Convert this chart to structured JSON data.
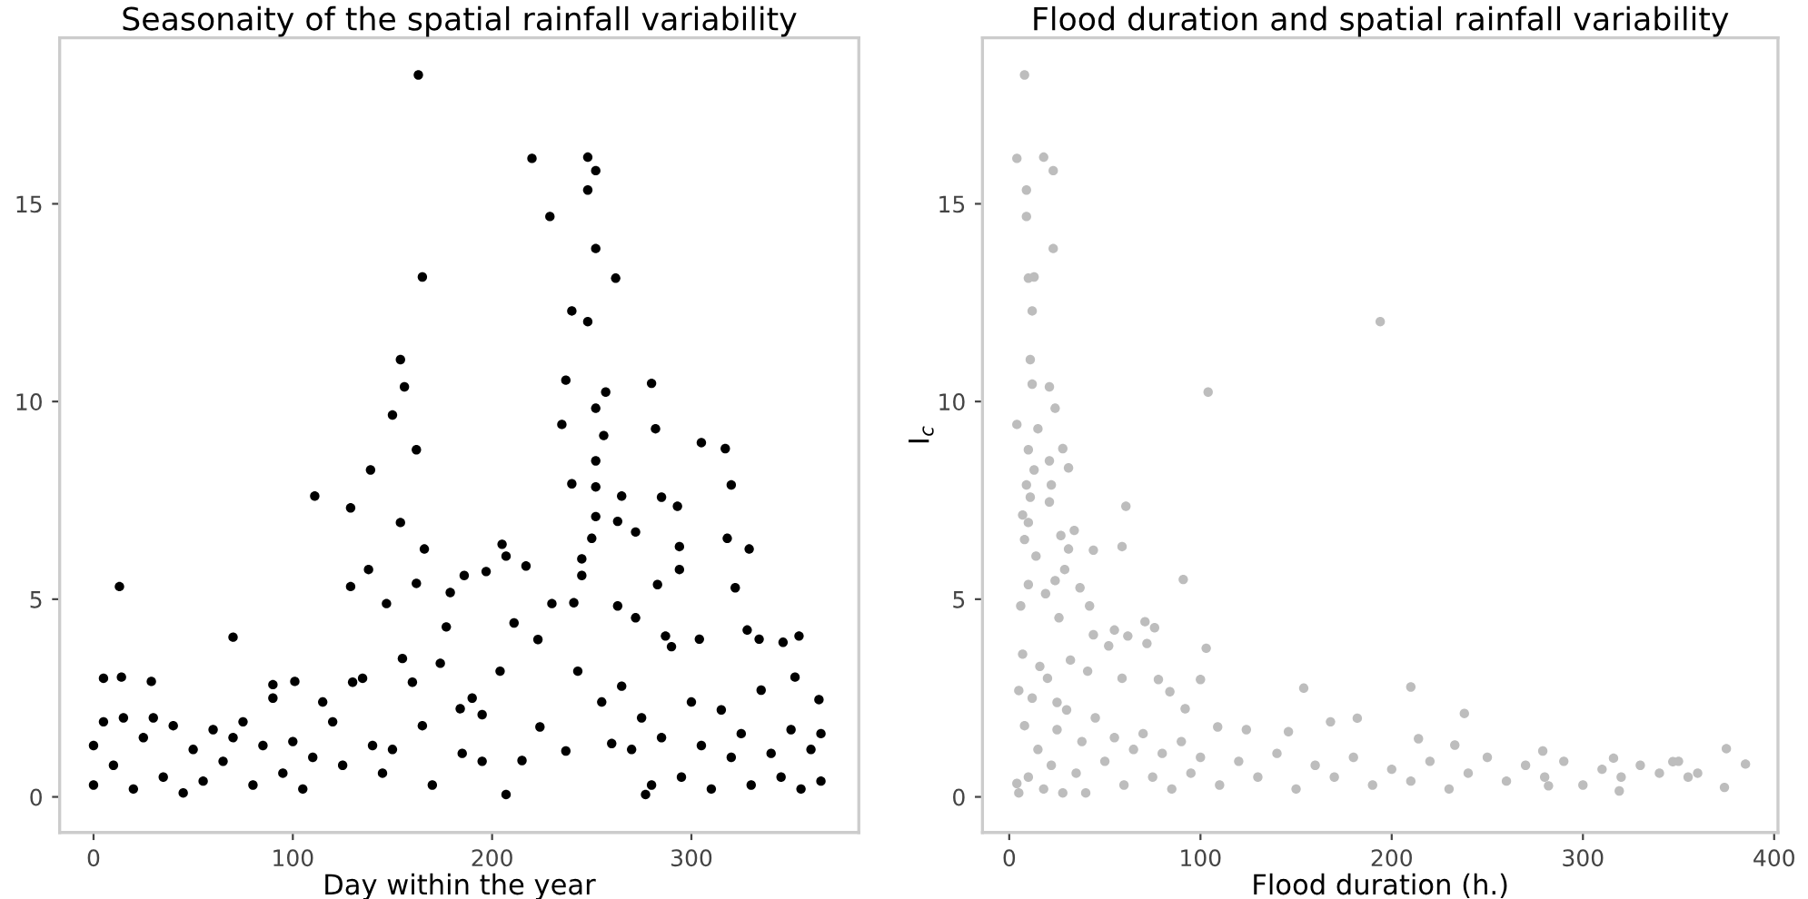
{
  "chart_data": [
    {
      "type": "scatter",
      "title": "Seasonaity of the spatial rainfall variability",
      "xlabel": "Day within the year",
      "xlim": [
        -17,
        384
      ],
      "ylim": [
        -0.9,
        19.2
      ],
      "xticks": [
        0,
        100,
        200,
        300
      ],
      "yticks": [
        0,
        5,
        10,
        15
      ],
      "marker": "circle",
      "series": [
        {
          "color": "#000000",
          "x": [
            13,
            70,
            163,
            165,
            220,
            248,
            248,
            252,
            229,
            252,
            262,
            240,
            248,
            154,
            156,
            237,
            257,
            280,
            150,
            235,
            252,
            256,
            282,
            305,
            317,
            162,
            139,
            111,
            129,
            240,
            252,
            252,
            265,
            285,
            293,
            320,
            154,
            166,
            205,
            207,
            217,
            197,
            252,
            263,
            272,
            294,
            318,
            329,
            250,
            245,
            138,
            162,
            186,
            179,
            129,
            147,
            230,
            241,
            245,
            283,
            294,
            322,
            263,
            272,
            211,
            177,
            287,
            304,
            354,
            328,
            334,
            223,
            174,
            243,
            346,
            5,
            14,
            29,
            90,
            101,
            352,
            260,
            215,
            207,
            277,
            204,
            195,
            184,
            224,
            237,
            364,
            0,
            0,
            5,
            10,
            15,
            20,
            25,
            30,
            35,
            40,
            45,
            50,
            55,
            60,
            65,
            70,
            75,
            80,
            85,
            90,
            95,
            100,
            105,
            110,
            115,
            120,
            125,
            130,
            135,
            140,
            145,
            150,
            155,
            160,
            165,
            170,
            185,
            190,
            195,
            255,
            265,
            270,
            275,
            280,
            285,
            290,
            295,
            300,
            305,
            310,
            315,
            320,
            325,
            330,
            335,
            340,
            345,
            350,
            355,
            360,
            365,
            365
          ],
          "values": [
            5.32,
            4.04,
            18.26,
            13.15,
            16.15,
            16.18,
            15.35,
            15.84,
            14.68,
            13.87,
            13.12,
            12.29,
            12.02,
            11.06,
            10.37,
            10.54,
            10.24,
            10.46,
            9.66,
            9.42,
            9.83,
            9.14,
            9.31,
            8.96,
            8.81,
            8.78,
            8.27,
            7.61,
            7.31,
            7.92,
            8.5,
            7.84,
            7.61,
            7.58,
            7.35,
            7.89,
            6.94,
            6.27,
            6.39,
            6.09,
            5.84,
            5.7,
            7.09,
            6.97,
            6.7,
            6.33,
            6.54,
            6.27,
            6.54,
            6.02,
            5.75,
            5.4,
            5.6,
            5.17,
            5.32,
            4.89,
            4.89,
            4.91,
            5.6,
            5.37,
            5.75,
            5.29,
            4.83,
            4.53,
            4.4,
            4.3,
            4.07,
            3.99,
            4.07,
            4.22,
            3.99,
            3.98,
            3.38,
            3.18,
            3.91,
            3.0,
            3.03,
            2.92,
            2.84,
            2.92,
            3.03,
            1.35,
            0.92,
            0.06,
            0.06,
            3.18,
            2.08,
            2.23,
            1.77,
            1.16,
            2.46,
            1.3,
            0.3,
            1.9,
            0.8,
            2.0,
            0.2,
            1.5,
            2.0,
            0.5,
            1.8,
            0.1,
            1.2,
            0.4,
            1.7,
            0.9,
            1.5,
            1.9,
            0.3,
            1.3,
            2.5,
            0.6,
            1.4,
            0.2,
            1.0,
            2.4,
            1.9,
            0.8,
            2.9,
            3.0,
            1.3,
            0.6,
            1.2,
            3.5,
            2.9,
            1.8,
            0.3,
            1.1,
            2.5,
            0.9,
            2.4,
            2.8,
            1.2,
            2.0,
            0.3,
            1.5,
            3.8,
            0.5,
            2.4,
            1.3,
            0.2,
            2.2,
            1.0,
            1.6,
            0.3,
            2.7,
            1.1,
            0.5,
            1.7,
            0.2,
            1.2,
            0.4,
            1.6
          ]
        }
      ]
    },
    {
      "type": "scatter",
      "title": "Flood duration and spatial rainfall variability",
      "xlabel": "Flood duration (h.)",
      "ylabel": "I$_{c}$",
      "xlim": [
        -14,
        402
      ],
      "ylim": [
        -0.9,
        19.2
      ],
      "xticks": [
        0,
        100,
        200,
        300,
        400
      ],
      "yticks": [
        0,
        5,
        10,
        15
      ],
      "marker": "circle",
      "series": [
        {
          "color": "#bdbdbd",
          "x": [
            8,
            4,
            18,
            23,
            9,
            9,
            23,
            10,
            13,
            12,
            194,
            11,
            12,
            21,
            104,
            24,
            4,
            15,
            10,
            28,
            21,
            31,
            13,
            22,
            9,
            11,
            21,
            61,
            7,
            10,
            34,
            27,
            8,
            31,
            44,
            59,
            14,
            29,
            91,
            24,
            10,
            19,
            37,
            42,
            6,
            26,
            71,
            76,
            44,
            55,
            62,
            72,
            52,
            103,
            7,
            32,
            16,
            41,
            59,
            100,
            78,
            154,
            210,
            5,
            84,
            25,
            92,
            238,
            182,
            168,
            109,
            124,
            146,
            214,
            233,
            279,
            375,
            385,
            316,
            347,
            374,
            319,
            282,
            4,
            5,
            8,
            10,
            12,
            15,
            18,
            20,
            22,
            25,
            28,
            30,
            35,
            38,
            40,
            45,
            50,
            55,
            60,
            65,
            70,
            75,
            80,
            85,
            90,
            95,
            100,
            110,
            120,
            130,
            140,
            150,
            160,
            170,
            180,
            190,
            200,
            210,
            220,
            230,
            240,
            250,
            260,
            270,
            280,
            290,
            300,
            310,
            320,
            330,
            340,
            350,
            355,
            360
          ],
          "values": [
            18.26,
            16.15,
            16.18,
            15.84,
            15.35,
            14.68,
            13.87,
            13.12,
            13.15,
            12.29,
            12.02,
            11.06,
            10.44,
            10.37,
            10.24,
            9.83,
            9.42,
            9.31,
            8.78,
            8.81,
            8.5,
            8.32,
            8.27,
            7.89,
            7.89,
            7.58,
            7.46,
            7.35,
            7.13,
            6.94,
            6.74,
            6.61,
            6.51,
            6.27,
            6.24,
            6.33,
            6.09,
            5.75,
            5.5,
            5.47,
            5.37,
            5.14,
            5.29,
            4.83,
            4.83,
            4.53,
            4.43,
            4.28,
            4.1,
            4.22,
            4.07,
            3.88,
            3.82,
            3.76,
            3.61,
            3.46,
            3.3,
            3.18,
            3.0,
            2.97,
            2.97,
            2.75,
            2.78,
            2.69,
            2.66,
            2.39,
            2.23,
            2.11,
            1.99,
            1.9,
            1.77,
            1.7,
            1.65,
            1.47,
            1.31,
            1.16,
            1.22,
            0.83,
            0.98,
            0.89,
            0.24,
            0.15,
            0.28,
            0.34,
            0.1,
            1.8,
            0.5,
            2.5,
            1.2,
            0.2,
            3.0,
            0.8,
            1.7,
            0.1,
            2.2,
            0.6,
            1.4,
            0.1,
            2.0,
            0.9,
            1.5,
            0.3,
            1.2,
            1.6,
            0.5,
            1.1,
            0.2,
            1.4,
            0.6,
            1.0,
            0.3,
            0.9,
            0.5,
            1.1,
            0.2,
            0.8,
            0.5,
            1.0,
            0.3,
            0.7,
            0.4,
            0.9,
            0.2,
            0.6,
            1.0,
            0.4,
            0.8,
            0.5,
            0.9,
            0.3,
            0.7,
            0.5,
            0.8,
            0.6,
            0.9,
            0.5,
            0.6
          ]
        }
      ]
    }
  ]
}
